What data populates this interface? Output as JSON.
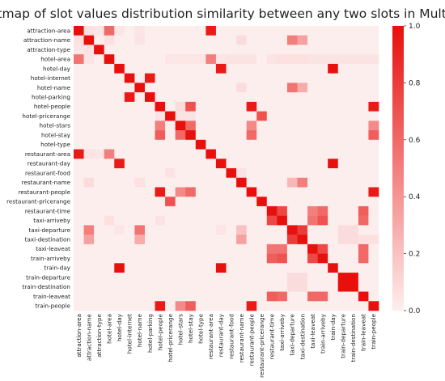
{
  "chart_data": {
    "type": "heatmap",
    "title": "Heatmap of slot values distribution similarity between any two slots in MultiWOZ",
    "labels": [
      "attraction-area",
      "attraction-name",
      "attraction-type",
      "hotel-area",
      "hotel-day",
      "hotel-internet",
      "hotel-name",
      "hotel-parking",
      "hotel-people",
      "hotel-pricerange",
      "hotel-stars",
      "hotel-stay",
      "hotel-type",
      "restaurant-area",
      "restaurant-day",
      "restaurant-food",
      "restaurant-name",
      "restaurant-people",
      "restaurant-pricerange",
      "restaurant-time",
      "taxi-arriveby",
      "taxi-departure",
      "taxi-destination",
      "taxi-leaveat",
      "train-arriveby",
      "train-day",
      "train-departure",
      "train-destination",
      "train-leaveat",
      "train-people"
    ],
    "colorbar": {
      "min": 0.0,
      "max": 1.0,
      "ticks": [
        "0.0",
        "0.2",
        "0.4",
        "0.6",
        "0.8",
        "1.0"
      ],
      "low_color": "#fdeeee",
      "high_color": "#e8100c"
    },
    "cells": [
      [
        0,
        0,
        1.0
      ],
      [
        0,
        3,
        0.6
      ],
      [
        0,
        13,
        0.95
      ],
      [
        0,
        1,
        0.06
      ],
      [
        0,
        2,
        0.04
      ],
      [
        0,
        4,
        0.04
      ],
      [
        0,
        6,
        0.04
      ],
      [
        1,
        1,
        1.0
      ],
      [
        1,
        0,
        0.06
      ],
      [
        1,
        3,
        0.06
      ],
      [
        1,
        21,
        0.5
      ],
      [
        1,
        22,
        0.35
      ],
      [
        1,
        6,
        0.05
      ],
      [
        1,
        16,
        0.08
      ],
      [
        2,
        2,
        1.0
      ],
      [
        2,
        0,
        0.04
      ],
      [
        2,
        1,
        0.05
      ],
      [
        3,
        3,
        1.0
      ],
      [
        3,
        0,
        0.55
      ],
      [
        3,
        13,
        0.5
      ],
      [
        3,
        1,
        0.05
      ],
      [
        3,
        14,
        0.04
      ],
      [
        3,
        15,
        0.05
      ],
      [
        3,
        16,
        0.05
      ],
      [
        3,
        17,
        0.05
      ],
      [
        3,
        19,
        0.05
      ],
      [
        3,
        20,
        0.06
      ],
      [
        3,
        21,
        0.06
      ],
      [
        3,
        22,
        0.06
      ],
      [
        3,
        23,
        0.05
      ],
      [
        3,
        24,
        0.05
      ],
      [
        3,
        25,
        0.05
      ],
      [
        3,
        26,
        0.05
      ],
      [
        3,
        27,
        0.05
      ],
      [
        3,
        28,
        0.05
      ],
      [
        3,
        29,
        0.05
      ],
      [
        3,
        9,
        0.04
      ],
      [
        3,
        10,
        0.04
      ],
      [
        3,
        11,
        0.04
      ],
      [
        3,
        12,
        0.04
      ],
      [
        4,
        4,
        1.0
      ],
      [
        4,
        14,
        0.95
      ],
      [
        4,
        25,
        1.0
      ],
      [
        5,
        5,
        1.0
      ],
      [
        5,
        7,
        0.95
      ],
      [
        6,
        6,
        1.0
      ],
      [
        6,
        21,
        0.55
      ],
      [
        6,
        22,
        0.3
      ],
      [
        6,
        16,
        0.08
      ],
      [
        7,
        7,
        1.0
      ],
      [
        7,
        5,
        0.95
      ],
      [
        8,
        8,
        1.0
      ],
      [
        8,
        11,
        0.7
      ],
      [
        8,
        17,
        0.95
      ],
      [
        8,
        29,
        0.95
      ],
      [
        8,
        10,
        0.08
      ],
      [
        9,
        9,
        1.0
      ],
      [
        9,
        18,
        0.7
      ],
      [
        9,
        8,
        0.05
      ],
      [
        9,
        10,
        0.05
      ],
      [
        9,
        11,
        0.05
      ],
      [
        10,
        10,
        1.0
      ],
      [
        10,
        8,
        0.5
      ],
      [
        10,
        11,
        0.6
      ],
      [
        10,
        17,
        0.45
      ],
      [
        10,
        29,
        0.45
      ],
      [
        11,
        11,
        1.0
      ],
      [
        11,
        8,
        0.65
      ],
      [
        11,
        10,
        0.6
      ],
      [
        11,
        17,
        0.6
      ],
      [
        11,
        29,
        0.65
      ],
      [
        12,
        12,
        1.0
      ],
      [
        13,
        13,
        1.0
      ],
      [
        13,
        0,
        0.95
      ],
      [
        13,
        3,
        0.5
      ],
      [
        13,
        1,
        0.05
      ],
      [
        13,
        2,
        0.04
      ],
      [
        14,
        14,
        1.0
      ],
      [
        14,
        4,
        0.95
      ],
      [
        14,
        25,
        1.0
      ],
      [
        15,
        15,
        1.0
      ],
      [
        15,
        9,
        0.05
      ],
      [
        15,
        16,
        0.05
      ],
      [
        16,
        16,
        1.0
      ],
      [
        16,
        21,
        0.25
      ],
      [
        16,
        22,
        0.5
      ],
      [
        16,
        6,
        0.06
      ],
      [
        16,
        1,
        0.08
      ],
      [
        17,
        17,
        1.0
      ],
      [
        17,
        8,
        0.95
      ],
      [
        17,
        11,
        0.6
      ],
      [
        17,
        10,
        0.45
      ],
      [
        17,
        29,
        0.95
      ],
      [
        18,
        18,
        1.0
      ],
      [
        18,
        9,
        0.7
      ],
      [
        19,
        19,
        1.0
      ],
      [
        19,
        20,
        0.75
      ],
      [
        19,
        23,
        0.5
      ],
      [
        19,
        24,
        0.6
      ],
      [
        19,
        28,
        0.65
      ],
      [
        20,
        20,
        1.0
      ],
      [
        20,
        19,
        0.75
      ],
      [
        20,
        23,
        0.55
      ],
      [
        20,
        24,
        0.7
      ],
      [
        20,
        28,
        0.6
      ],
      [
        20,
        3,
        0.06
      ],
      [
        20,
        8,
        0.05
      ],
      [
        21,
        21,
        1.0
      ],
      [
        21,
        22,
        0.8
      ],
      [
        21,
        1,
        0.5
      ],
      [
        21,
        6,
        0.55
      ],
      [
        21,
        16,
        0.2
      ],
      [
        21,
        4,
        0.04
      ],
      [
        21,
        14,
        0.04
      ],
      [
        21,
        26,
        0.08
      ],
      [
        21,
        27,
        0.08
      ],
      [
        22,
        22,
        1.0
      ],
      [
        22,
        21,
        0.8
      ],
      [
        22,
        1,
        0.35
      ],
      [
        22,
        6,
        0.3
      ],
      [
        22,
        16,
        0.35
      ],
      [
        22,
        26,
        0.08
      ],
      [
        22,
        27,
        0.08
      ],
      [
        22,
        28,
        0.06
      ],
      [
        22,
        29,
        0.06
      ],
      [
        23,
        23,
        1.0
      ],
      [
        23,
        19,
        0.55
      ],
      [
        23,
        20,
        0.55
      ],
      [
        23,
        24,
        0.75
      ],
      [
        23,
        28,
        0.6
      ],
      [
        24,
        24,
        1.0
      ],
      [
        24,
        19,
        0.65
      ],
      [
        24,
        20,
        0.7
      ],
      [
        24,
        23,
        0.75
      ],
      [
        24,
        28,
        0.6
      ],
      [
        25,
        25,
        1.0
      ],
      [
        25,
        4,
        1.0
      ],
      [
        25,
        14,
        1.0
      ],
      [
        26,
        26,
        1.0
      ],
      [
        26,
        27,
        1.0
      ],
      [
        26,
        21,
        0.08
      ],
      [
        26,
        22,
        0.08
      ],
      [
        27,
        27,
        1.0
      ],
      [
        27,
        26,
        1.0
      ],
      [
        27,
        21,
        0.08
      ],
      [
        27,
        22,
        0.08
      ],
      [
        28,
        28,
        1.0
      ],
      [
        28,
        19,
        0.65
      ],
      [
        28,
        20,
        0.6
      ],
      [
        28,
        23,
        0.6
      ],
      [
        28,
        24,
        0.6
      ],
      [
        29,
        29,
        1.0
      ],
      [
        29,
        8,
        0.95
      ],
      [
        29,
        11,
        0.65
      ],
      [
        29,
        10,
        0.45
      ],
      [
        29,
        17,
        0.95
      ]
    ]
  }
}
